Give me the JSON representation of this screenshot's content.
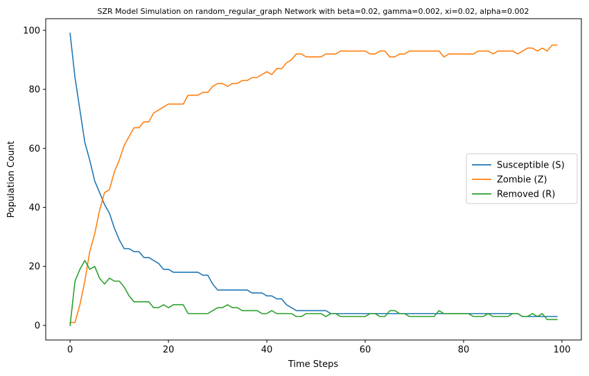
{
  "chart_data": {
    "type": "line",
    "title": "SZR Model Simulation on random_regular_graph Network with beta=0.02, gamma=0.002, xi=0.02, alpha=0.002",
    "xlabel": "Time Steps",
    "ylabel": "Population Count",
    "xlim": [
      -4.95,
      103.95
    ],
    "ylim": [
      -4.95,
      103.95
    ],
    "xticks": [
      0,
      20,
      40,
      60,
      80,
      100
    ],
    "yticks": [
      0,
      20,
      40,
      60,
      80,
      100
    ],
    "grid": false,
    "legend_position": "center-right",
    "x": [
      0,
      1,
      2,
      3,
      4,
      5,
      6,
      7,
      8,
      9,
      10,
      11,
      12,
      13,
      14,
      15,
      16,
      17,
      18,
      19,
      20,
      21,
      22,
      23,
      24,
      25,
      26,
      27,
      28,
      29,
      30,
      31,
      32,
      33,
      34,
      35,
      36,
      37,
      38,
      39,
      40,
      41,
      42,
      43,
      44,
      45,
      46,
      47,
      48,
      49,
      50,
      51,
      52,
      53,
      54,
      55,
      56,
      57,
      58,
      59,
      60,
      61,
      62,
      63,
      64,
      65,
      66,
      67,
      68,
      69,
      70,
      71,
      72,
      73,
      74,
      75,
      76,
      77,
      78,
      79,
      80,
      81,
      82,
      83,
      84,
      85,
      86,
      87,
      88,
      89,
      90,
      91,
      92,
      93,
      94,
      95,
      96,
      97,
      98,
      99
    ],
    "series": [
      {
        "name": "Susceptible (S)",
        "color": "#1f77b4",
        "values": [
          99,
          84,
          73,
          62,
          56,
          49,
          45,
          41,
          38,
          33,
          29,
          26,
          26,
          25,
          25,
          23,
          23,
          22,
          21,
          19,
          19,
          18,
          18,
          18,
          18,
          18,
          18,
          17,
          17,
          14,
          12,
          12,
          12,
          12,
          12,
          12,
          12,
          11,
          11,
          11,
          10,
          10,
          9,
          9,
          7,
          6,
          5,
          5,
          5,
          5,
          5,
          5,
          5,
          4,
          4,
          4,
          4,
          4,
          4,
          4,
          4,
          4,
          4,
          4,
          4,
          4,
          4,
          4,
          4,
          4,
          4,
          4,
          4,
          4,
          4,
          4,
          4,
          4,
          4,
          4,
          4,
          4,
          4,
          4,
          4,
          4,
          4,
          4,
          4,
          4,
          4,
          4,
          3,
          3,
          3,
          3,
          3,
          3,
          3,
          3
        ]
      },
      {
        "name": "Zombie (Z)",
        "color": "#ff7f0e",
        "values": [
          1,
          1,
          7,
          15,
          25,
          31,
          39,
          45,
          46,
          52,
          56,
          61,
          64,
          67,
          67,
          69,
          69,
          72,
          73,
          74,
          75,
          75,
          75,
          75,
          78,
          78,
          78,
          79,
          79,
          81,
          82,
          82,
          81,
          82,
          82,
          83,
          83,
          84,
          84,
          85,
          86,
          85,
          87,
          87,
          89,
          90,
          92,
          92,
          91,
          91,
          91,
          91,
          92,
          92,
          92,
          93,
          93,
          93,
          93,
          93,
          93,
          92,
          92,
          93,
          93,
          91,
          91,
          92,
          92,
          93,
          93,
          93,
          93,
          93,
          93,
          93,
          91,
          92,
          92,
          92,
          92,
          92,
          92,
          93,
          93,
          93,
          92,
          93,
          93,
          93,
          93,
          92,
          93,
          94,
          94,
          93,
          94,
          93,
          95,
          95
        ]
      },
      {
        "name": "Removed (R)",
        "color": "#2ca02c",
        "values": [
          0,
          15,
          19,
          22,
          19,
          20,
          16,
          14,
          16,
          15,
          15,
          13,
          10,
          8,
          8,
          8,
          8,
          6,
          6,
          7,
          6,
          7,
          7,
          7,
          4,
          4,
          4,
          4,
          4,
          5,
          6,
          6,
          7,
          6,
          6,
          5,
          5,
          5,
          5,
          4,
          4,
          5,
          4,
          4,
          4,
          4,
          3,
          3,
          4,
          4,
          4,
          4,
          3,
          4,
          4,
          3,
          3,
          3,
          3,
          3,
          3,
          4,
          4,
          3,
          3,
          5,
          5,
          4,
          4,
          3,
          3,
          3,
          3,
          3,
          3,
          5,
          4,
          4,
          4,
          4,
          4,
          4,
          3,
          3,
          3,
          4,
          3,
          3,
          3,
          3,
          4,
          4,
          3,
          3,
          4,
          3,
          4,
          2,
          2,
          2
        ]
      }
    ]
  }
}
